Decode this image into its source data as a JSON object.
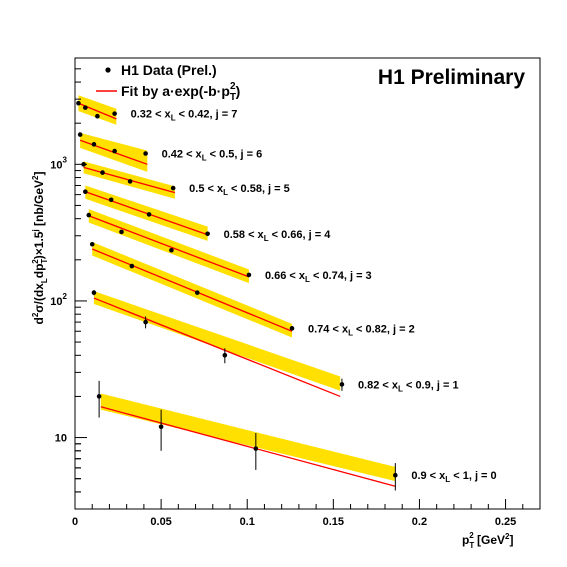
{
  "chart_data": {
    "type": "scatter",
    "title": "H1 Preliminary",
    "xlabel": "p_T^2 [GeV^2]",
    "ylabel": "d^2σ/(dx_L dp_T^2)×1.5^j [nb/GeV^2]",
    "xlim": [
      0,
      0.27
    ],
    "ylim": [
      3,
      6000
    ],
    "yscale": "log",
    "grid": false,
    "legend_position": "top-left",
    "x_ticks": [
      0,
      0.05,
      0.1,
      0.15,
      0.2,
      0.25
    ],
    "x_tick_labels": [
      "0",
      "0.05",
      "0.1",
      "0.15",
      "0.2",
      "0.25"
    ],
    "y_ticks": [
      10,
      100,
      1000
    ],
    "y_tick_labels": [
      "10",
      "10",
      "10"
    ],
    "y_tick_exponents": [
      "",
      "2",
      "3"
    ],
    "legend": [
      {
        "label": "H1 Data (Prel.)",
        "marker": "dot"
      },
      {
        "label": "Fit by a·exp(-b·p_T^2)",
        "marker": "line"
      }
    ],
    "colors": {
      "data": "#000000",
      "fit": "#ff0000",
      "band": "#ffe000"
    },
    "series": [
      {
        "label": "0.32 < x_L < 0.42,  j = 7",
        "x": [
          0.002,
          0.006,
          0.013,
          0.023
        ],
        "y": [
          2800,
          2600,
          2250,
          2350
        ],
        "err": [
          0,
          0,
          0,
          0
        ],
        "fit": [
          [
            0.002,
            2800
          ],
          [
            0.024,
            2150
          ]
        ],
        "band_lo": [
          2450,
          1950
        ],
        "band_hi": [
          3200,
          2550
        ]
      },
      {
        "label": "0.42 < x_L < 0.5,  j = 6",
        "x": [
          0.003,
          0.011,
          0.023,
          0.041
        ],
        "y": [
          1650,
          1400,
          1250,
          1200
        ],
        "err": [
          0,
          0,
          0,
          0
        ],
        "fit": [
          [
            0.003,
            1500
          ],
          [
            0.042,
            1000
          ]
        ],
        "band_lo": [
          1320,
          880
        ],
        "band_hi": [
          1700,
          1260
        ]
      },
      {
        "label": "0.5 < x_L < 0.58,  j = 5",
        "x": [
          0.005,
          0.016,
          0.032,
          0.057
        ],
        "y": [
          1000,
          870,
          750,
          670
        ],
        "err": [
          0,
          0,
          0,
          0
        ],
        "fit": [
          [
            0.005,
            950
          ],
          [
            0.058,
            620
          ]
        ],
        "band_lo": [
          860,
          560
        ],
        "band_hi": [
          1050,
          690
        ]
      },
      {
        "label": "0.58 < x_L < 0.66,  j = 4",
        "x": [
          0.006,
          0.021,
          0.043,
          0.077
        ],
        "y": [
          630,
          550,
          430,
          310
        ],
        "err": [
          0,
          0,
          0,
          0
        ],
        "fit": [
          [
            0.006,
            630
          ],
          [
            0.077,
            305
          ]
        ],
        "band_lo": [
          560,
          275
        ],
        "band_hi": [
          700,
          350
        ]
      },
      {
        "label": "0.66 < x_L < 0.74,  j = 3",
        "x": [
          0.008,
          0.027,
          0.056,
          0.101
        ],
        "y": [
          425,
          320,
          235,
          155
        ],
        "err": [
          0,
          0,
          0,
          0
        ],
        "fit": [
          [
            0.008,
            420
          ],
          [
            0.101,
            150
          ]
        ],
        "band_lo": [
          375,
          135
        ],
        "band_hi": [
          470,
          170
        ]
      },
      {
        "label": "0.74 < x_L < 0.82,  j = 2",
        "x": [
          0.01,
          0.033,
          0.071,
          0.126
        ],
        "y": [
          260,
          180,
          115,
          63
        ],
        "err": [
          0,
          0,
          0,
          0
        ],
        "fit": [
          [
            0.01,
            240
          ],
          [
            0.126,
            60
          ]
        ],
        "band_lo": [
          215,
          54
        ],
        "band_hi": [
          270,
          68
        ]
      },
      {
        "label": "0.82 < x_L < 0.9,  j = 1",
        "x": [
          0.011,
          0.041,
          0.087,
          0.155
        ],
        "y": [
          115,
          70,
          40,
          24.5
        ],
        "err": [
          5,
          7,
          5,
          2.5
        ],
        "fit": [
          [
            0.011,
            105
          ],
          [
            0.154,
            20
          ]
        ],
        "band_lo": [
          95,
          22
        ],
        "band_hi": [
          118,
          28
        ]
      },
      {
        "label": "0.9 < x_L < 1,  j = 0",
        "x": [
          0.014,
          0.05,
          0.105,
          0.186
        ],
        "y": [
          20,
          12,
          8.3,
          5.3
        ],
        "err": [
          6,
          4,
          2.5,
          1.2
        ],
        "fit": [
          [
            0.015,
            16.8
          ],
          [
            0.186,
            4.4
          ]
        ],
        "band_lo": [
          16,
          4.8
        ],
        "band_hi": [
          21,
          6.1
        ]
      }
    ]
  }
}
